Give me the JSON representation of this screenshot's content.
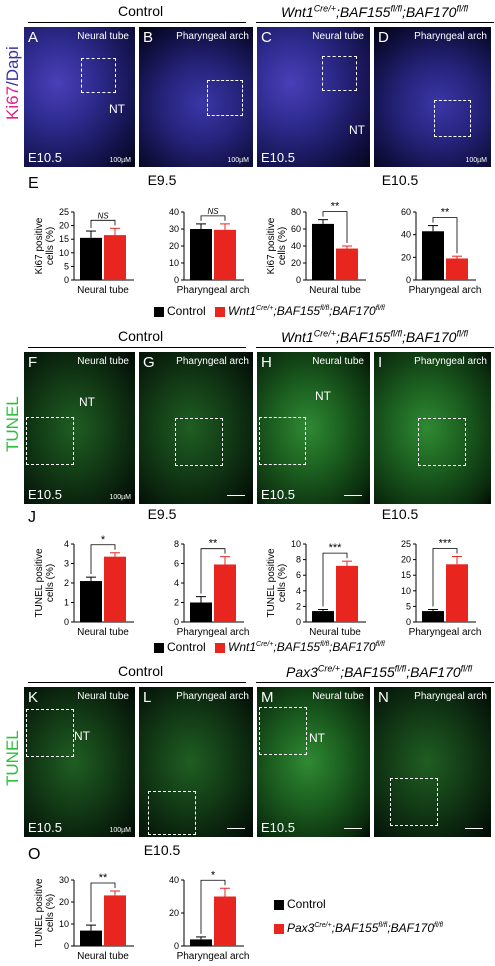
{
  "header_row1": {
    "control": "Control",
    "mutant_html": "<i>Wnt1<sup>Cre/+</sup>;BAF155<sup>fl/fl</sup>;BAF170<sup>fl/fl</sup></i>"
  },
  "row_ki67": {
    "side_label_a": "Ki67",
    "side_label_b": "/Dapi",
    "panels": [
      {
        "letter": "A",
        "title": "Neural tube",
        "nt": "NT",
        "stage": "E10.5",
        "scale": "100µM"
      },
      {
        "letter": "B",
        "title": "Pharyngeal arch",
        "scale": "100µM"
      },
      {
        "letter": "C",
        "title": "Neural tube",
        "nt": "NT",
        "stage": "E10.5"
      },
      {
        "letter": "D",
        "title": "Pharyngeal arch",
        "scale": "100µM"
      }
    ]
  },
  "section_E": {
    "letter": "E",
    "left_stage": "E9.5",
    "right_stage": "E10.5"
  },
  "legend_E": {
    "control": "Control",
    "mutant_html": "<i>Wnt1<sup>Cre/+</sup>;BAF155<sup>fl/fl</sup>;BAF170<sup>fl/fl</sup></i>"
  },
  "header_row2": {
    "control": "Control",
    "mutant_html": "<i>Wnt1<sup>Cre/+</sup>;BAF155<sup>fl/fl</sup>;BAF170<sup>fl/fl</sup></i>"
  },
  "row_tunel1": {
    "side_label": "TUNEL",
    "panels": [
      {
        "letter": "F",
        "title": "Neural tube",
        "nt": "NT",
        "stage": "E10.5",
        "scale": "100µM"
      },
      {
        "letter": "G",
        "title": "Pharyngeal arch"
      },
      {
        "letter": "H",
        "title": "Neural tube",
        "nt": "NT",
        "stage": "E10.5"
      },
      {
        "letter": "I",
        "title": "Pharyngeal arch"
      }
    ]
  },
  "section_J": {
    "letter": "J",
    "left_stage": "E9.5",
    "right_stage": "E10.5"
  },
  "legend_J": {
    "control": "Control",
    "mutant_html": "<i>Wnt1<sup>Cre/+</sup>;BAF155<sup>fl/fl</sup>;BAF170<sup>fl/fl</sup></i>"
  },
  "header_row3": {
    "control": "Control",
    "mutant_html": "<i>Pax3<sup>Cre/+</sup>;BAF155<sup>fl/fl</sup>;BAF170<sup>fl/fl</sup></i>"
  },
  "row_tunel2": {
    "side_label": "TUNEL",
    "panels": [
      {
        "letter": "K",
        "title": "Neural tube",
        "nt": "NT",
        "stage": "E10.5",
        "scale": "100µM"
      },
      {
        "letter": "L",
        "title": "Pharyngeal arch"
      },
      {
        "letter": "M",
        "title": "Neural tube",
        "nt": "NT",
        "stage": "E10.5"
      },
      {
        "letter": "N",
        "title": "Pharyngeal arch"
      }
    ]
  },
  "section_O": {
    "letter": "O",
    "stage": "E10.5"
  },
  "legend_O": {
    "control": "Control",
    "mutant_html": "<i>Pax3<sup>Cre/+</sup>;BAF155<sup>fl/fl</sup>;BAF170<sup>fl/fl</sup></i>"
  },
  "colors": {
    "control": "#000000",
    "mutant": "#e8251f"
  },
  "chart_data": [
    {
      "id": "E_e95_nt",
      "type": "bar",
      "ylabel": "Ki67 positive cells (%)",
      "categories": [
        "Neural tube"
      ],
      "ylim": [
        0,
        25
      ],
      "yticks": [
        0,
        5,
        10,
        15,
        20,
        25
      ],
      "series": [
        {
          "name": "Control",
          "values": [
            15.5
          ],
          "err": [
            2.5
          ]
        },
        {
          "name": "Wnt1Cre/+;BAF155fl/fl;BAF170fl/fl",
          "values": [
            16.5
          ],
          "err": [
            2.5
          ]
        }
      ],
      "sig": "NS"
    },
    {
      "id": "E_e95_pa",
      "type": "bar",
      "ylabel": "",
      "categories": [
        "Pharyngeal arch"
      ],
      "ylim": [
        0,
        40
      ],
      "yticks": [
        0,
        10,
        20,
        30,
        40
      ],
      "series": [
        {
          "name": "Control",
          "values": [
            30
          ],
          "err": [
            3
          ]
        },
        {
          "name": "Wnt1Cre/+;BAF155fl/fl;BAF170fl/fl",
          "values": [
            29.5
          ],
          "err": [
            3.5
          ]
        }
      ],
      "sig": "NS"
    },
    {
      "id": "E_e105_nt",
      "type": "bar",
      "ylabel": "Ki67 positive cells (%)",
      "categories": [
        "Neural tube"
      ],
      "ylim": [
        0,
        80
      ],
      "yticks": [
        0,
        20,
        40,
        60,
        80
      ],
      "series": [
        {
          "name": "Control",
          "values": [
            66
          ],
          "err": [
            5
          ]
        },
        {
          "name": "Wnt1Cre/+;BAF155fl/fl;BAF170fl/fl",
          "values": [
            37
          ],
          "err": [
            3
          ]
        }
      ],
      "sig": "**"
    },
    {
      "id": "E_e105_pa",
      "type": "bar",
      "ylabel": "",
      "categories": [
        "Pharyngeal arch"
      ],
      "ylim": [
        0,
        60
      ],
      "yticks": [
        0,
        20,
        40,
        60
      ],
      "series": [
        {
          "name": "Control",
          "values": [
            43
          ],
          "err": [
            5
          ]
        },
        {
          "name": "Wnt1Cre/+;BAF155fl/fl;BAF170fl/fl",
          "values": [
            19
          ],
          "err": [
            2
          ]
        }
      ],
      "sig": "**"
    },
    {
      "id": "J_e95_nt",
      "type": "bar",
      "ylabel": "TUNEL positive cells (%)",
      "categories": [
        "Neural tube"
      ],
      "ylim": [
        0,
        4
      ],
      "yticks": [
        0,
        1,
        2,
        3,
        4
      ],
      "series": [
        {
          "name": "Control",
          "values": [
            2.1
          ],
          "err": [
            0.2
          ]
        },
        {
          "name": "Wnt1Cre/+;BAF155fl/fl;BAF170fl/fl",
          "values": [
            3.35
          ],
          "err": [
            0.2
          ]
        }
      ],
      "sig": "*"
    },
    {
      "id": "J_e95_pa",
      "type": "bar",
      "ylabel": "",
      "categories": [
        "Pharyngeal arch"
      ],
      "ylim": [
        0,
        8
      ],
      "yticks": [
        0,
        2,
        4,
        6,
        8
      ],
      "series": [
        {
          "name": "Control",
          "values": [
            2.0
          ],
          "err": [
            0.6
          ]
        },
        {
          "name": "Wnt1Cre/+;BAF155fl/fl;BAF170fl/fl",
          "values": [
            5.9
          ],
          "err": [
            0.8
          ]
        }
      ],
      "sig": "**"
    },
    {
      "id": "J_e105_nt",
      "type": "bar",
      "ylabel": "TUNEL positive cells (%)",
      "categories": [
        "Neural tube"
      ],
      "ylim": [
        0,
        10
      ],
      "yticks": [
        0,
        2,
        4,
        6,
        8,
        10
      ],
      "series": [
        {
          "name": "Control",
          "values": [
            1.4
          ],
          "err": [
            0.2
          ]
        },
        {
          "name": "Wnt1Cre/+;BAF155fl/fl;BAF170fl/fl",
          "values": [
            7.2
          ],
          "err": [
            0.6
          ]
        }
      ],
      "sig": "***"
    },
    {
      "id": "J_e105_pa",
      "type": "bar",
      "ylabel": "",
      "categories": [
        "Pharyngeal arch"
      ],
      "ylim": [
        0,
        25
      ],
      "yticks": [
        0,
        5,
        10,
        15,
        20,
        25
      ],
      "series": [
        {
          "name": "Control",
          "values": [
            3.5
          ],
          "err": [
            0.5
          ]
        },
        {
          "name": "Wnt1Cre/+;BAF155fl/fl;BAF170fl/fl",
          "values": [
            18.5
          ],
          "err": [
            2.5
          ]
        }
      ],
      "sig": "***"
    },
    {
      "id": "O_nt",
      "type": "bar",
      "ylabel": "TUNEL positive cells (%)",
      "categories": [
        "Neural tube"
      ],
      "ylim": [
        0,
        30
      ],
      "yticks": [
        0,
        10,
        20,
        30
      ],
      "series": [
        {
          "name": "Control",
          "values": [
            7
          ],
          "err": [
            2.5
          ]
        },
        {
          "name": "Pax3Cre/+;BAF155fl/fl;BAF170fl/fl",
          "values": [
            23
          ],
          "err": [
            2
          ]
        }
      ],
      "sig": "**"
    },
    {
      "id": "O_pa",
      "type": "bar",
      "ylabel": "",
      "categories": [
        "Pharyngeal arch"
      ],
      "ylim": [
        0,
        40
      ],
      "yticks": [
        0,
        20,
        40
      ],
      "series": [
        {
          "name": "Control",
          "values": [
            4
          ],
          "err": [
            1.5
          ]
        },
        {
          "name": "Pax3Cre/+;BAF155fl/fl;BAF170fl/fl",
          "values": [
            30
          ],
          "err": [
            5
          ]
        }
      ],
      "sig": "*"
    }
  ]
}
